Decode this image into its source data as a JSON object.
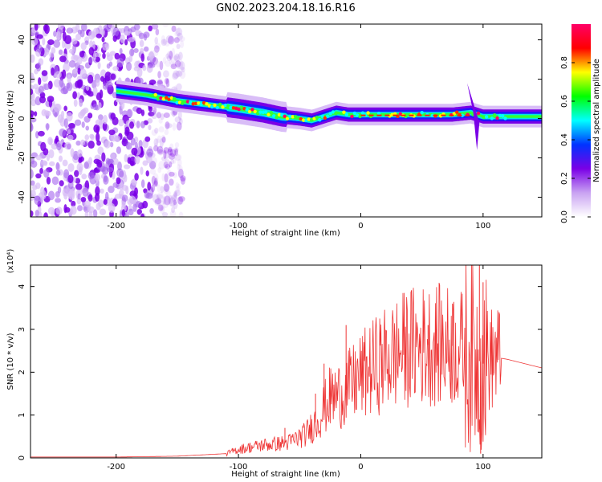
{
  "title": "GN02.2023.204.18.16.R16",
  "chart_data": [
    {
      "type": "heatmap",
      "xlabel": "Height of straight line (km)",
      "ylabel": "Frequency (Hz)",
      "xlim": [
        -270,
        148
      ],
      "ylim": [
        -50,
        48
      ],
      "x_ticks": [
        -200,
        -100,
        0,
        100
      ],
      "y_ticks": [
        -40,
        -20,
        0,
        20,
        40
      ],
      "colorbar": {
        "label": "Normalized spectral amplitude",
        "range": [
          0,
          1
        ],
        "ticks": [
          "0.0",
          "0.2",
          "0.4",
          "0.6",
          "0.8"
        ],
        "colors": [
          "#ffffff",
          "#c9a3f2",
          "#7a00e6",
          "#0033ff",
          "#00ffff",
          "#00ff00",
          "#ffff00",
          "#ff0000",
          "#ff0066"
        ]
      },
      "ridge": {
        "x": [
          -200,
          -175,
          -150,
          -125,
          -100,
          -80,
          -65,
          -50,
          -40,
          -30,
          -20,
          -10,
          0,
          25,
          50,
          75,
          90,
          100,
          120,
          148
        ],
        "freq": [
          14,
          12,
          9,
          7,
          5,
          3,
          1,
          0,
          -1,
          1,
          3,
          2,
          2,
          2,
          2,
          2,
          3,
          1,
          1,
          1
        ]
      },
      "noise_region_x": [
        -270,
        -170
      ]
    },
    {
      "type": "line",
      "xlabel": "Height of straight line (km)",
      "ylabel": "SNR (10 * v/v)",
      "y_exponent": "(x10⁴)",
      "xlim": [
        -270,
        148
      ],
      "ylim": [
        0,
        4.5
      ],
      "x_ticks": [
        -200,
        -100,
        0,
        100
      ],
      "y_ticks": [
        0,
        1,
        2,
        3,
        4
      ],
      "series_color": "#ee3333",
      "envelope": {
        "x": [
          -270,
          -200,
          -150,
          -110,
          -100,
          -80,
          -60,
          -45,
          -35,
          -25,
          -15,
          0,
          20,
          40,
          60,
          80,
          90,
          100,
          110,
          120,
          148
        ],
        "y": [
          0.02,
          0.02,
          0.04,
          0.1,
          0.2,
          0.3,
          0.35,
          0.55,
          0.9,
          1.4,
          1.5,
          1.9,
          2.3,
          2.6,
          2.65,
          2.6,
          2.4,
          2.2,
          2.35,
          2.3,
          2.1
        ]
      },
      "spikes": [
        {
          "x": -62,
          "y": 0.7
        },
        {
          "x": -37,
          "y": 1.5
        },
        {
          "x": -30,
          "y": 2.2
        },
        {
          "x": -12,
          "y": 3.1
        },
        {
          "x": 55,
          "y": 3.1
        },
        {
          "x": 75,
          "y": 3.6
        },
        {
          "x": 97,
          "y": 4.5
        },
        {
          "x": 100,
          "y": 4.1
        },
        {
          "x": 98,
          "y": 0.1
        }
      ]
    }
  ]
}
